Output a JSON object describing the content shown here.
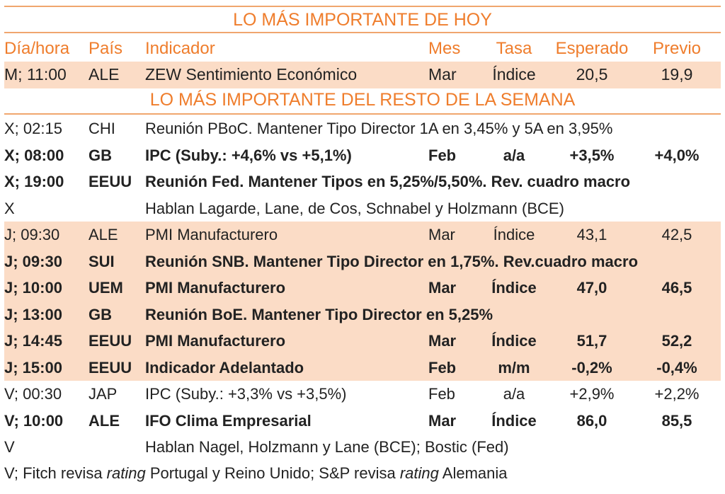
{
  "today_title": "LO MÁS IMPORTANTE DE HOY",
  "week_title": "LO MÁS IMPORTANTE DEL RESTO DE LA SEMANA",
  "headers": {
    "day": "Día/hora",
    "country": "País",
    "indicator": "Indicador",
    "month": "Mes",
    "rate": "Tasa",
    "expected": "Esperado",
    "previous": "Previo"
  },
  "today": [
    {
      "day": "M; 11:00",
      "country": "ALE",
      "indicator": "ZEW Sentimiento Económico",
      "month": "Mar",
      "rate": "Índice",
      "expected": "20,5",
      "previous": "19,9"
    }
  ],
  "week": [
    {
      "day": "X; 02:15",
      "country": "CHI",
      "indicator": "Reunión PBoC. Mantener Tipo Director 1A en 3,45% y 5A en 3,95%",
      "month": "",
      "rate": "",
      "expected": "",
      "previous": "",
      "bold": false,
      "hl": false
    },
    {
      "day": "X; 08:00",
      "country": "GB",
      "indicator": "IPC (Suby.: +4,6% vs +5,1%)",
      "month": "Feb",
      "rate": "a/a",
      "expected": "+3,5%",
      "previous": "+4,0%",
      "bold": true,
      "hl": false
    },
    {
      "day": "X; 19:00",
      "country": "EEUU",
      "indicator": "Reunión Fed. Mantener Tipos en 5,25%/5,50%. Rev. cuadro macro",
      "month": "",
      "rate": "",
      "expected": "",
      "previous": "",
      "bold": true,
      "hl": false
    },
    {
      "day": "X",
      "country": "",
      "indicator": "Hablan Lagarde, Lane, de Cos, Schnabel y Holzmann (BCE)",
      "month": "",
      "rate": "",
      "expected": "",
      "previous": "",
      "bold": false,
      "hl": false
    },
    {
      "day": "J; 09:30",
      "country": "ALE",
      "indicator": "PMI Manufacturero",
      "month": "Mar",
      "rate": "Índice",
      "expected": "43,1",
      "previous": "42,5",
      "bold": false,
      "hl": true
    },
    {
      "day": "J; 09:30",
      "country": "SUI",
      "indicator": "Reunión SNB. Mantener Tipo Director en 1,75%. Rev.cuadro macro",
      "month": "",
      "rate": "",
      "expected": "",
      "previous": "",
      "bold": true,
      "hl": true
    },
    {
      "day": "J; 10:00",
      "country": "UEM",
      "indicator": "PMI Manufacturero",
      "month": "Mar",
      "rate": "Índice",
      "expected": "47,0",
      "previous": "46,5",
      "bold": true,
      "hl": true
    },
    {
      "day": "J; 13:00",
      "country": "GB",
      "indicator": "Reunión BoE. Mantener Tipo Director en 5,25%",
      "month": "",
      "rate": "",
      "expected": "",
      "previous": "",
      "bold": true,
      "hl": true
    },
    {
      "day": "J; 14:45",
      "country": "EEUU",
      "indicator": "PMI Manufacturero",
      "month": "Mar",
      "rate": "Índice",
      "expected": "51,7",
      "previous": "52,2",
      "bold": true,
      "hl": true
    },
    {
      "day": "J; 15:00",
      "country": "EEUU",
      "indicator": "Indicador Adelantado",
      "month": "Feb",
      "rate": "m/m",
      "expected": "-0,2%",
      "previous": "-0,4%",
      "bold": true,
      "hl": true
    },
    {
      "day": "V; 00:30",
      "country": "JAP",
      "indicator": "IPC (Suby.: +3,3% vs +3,5%)",
      "month": "Feb",
      "rate": "a/a",
      "expected": "+2,9%",
      "previous": "+2,2%",
      "bold": false,
      "hl": false
    },
    {
      "day": "V; 10:00",
      "country": "ALE",
      "indicator": "IFO Clima Empresarial",
      "month": "Mar",
      "rate": "Índice",
      "expected": "86,0",
      "previous": "85,5",
      "bold": true,
      "hl": false
    },
    {
      "day": "V",
      "country": "",
      "indicator": "Hablan Nagel, Holzmann y Lane (BCE); Bostic (Fed)",
      "month": "",
      "rate": "",
      "expected": "",
      "previous": "",
      "bold": false,
      "hl": false
    }
  ],
  "footer": {
    "part1": "V; Fitch revisa ",
    "italic1": "rating",
    "part2": " Portugal y Reino Unido; S&P revisa ",
    "italic2": "rating",
    "part3": " Alemania"
  },
  "colors": {
    "accent": "#ef7d2c",
    "highlight": "#fbdcc6"
  }
}
